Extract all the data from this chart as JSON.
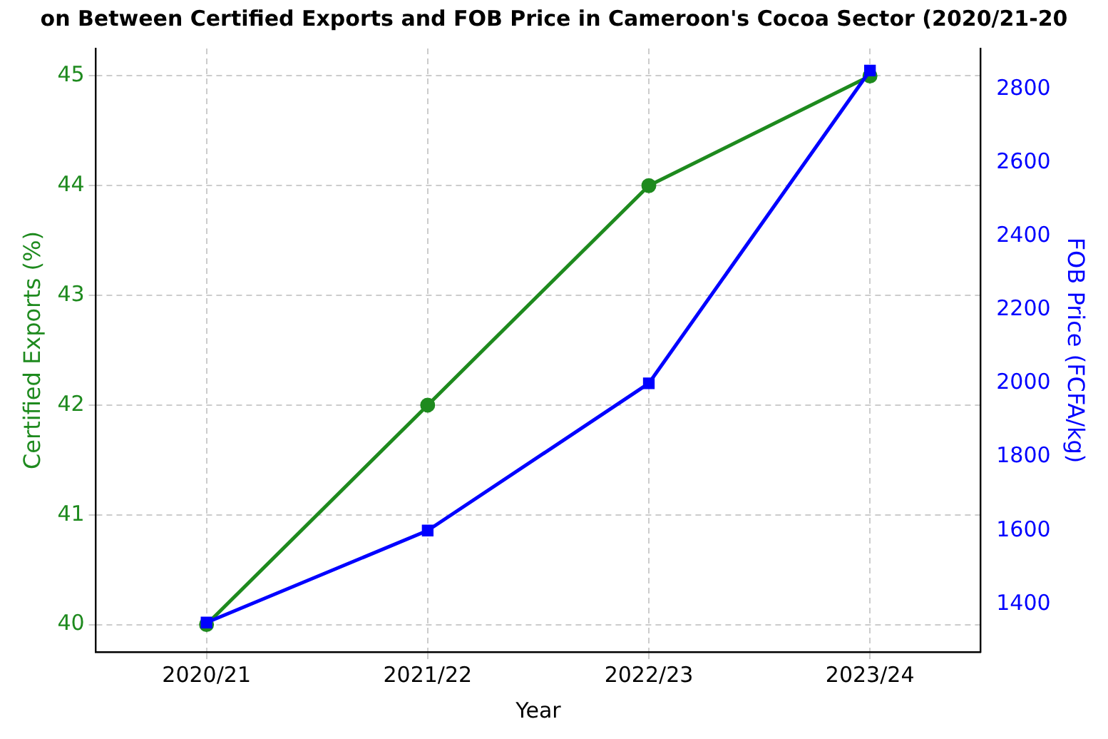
{
  "chart_data": {
    "type": "line",
    "title": "on Between Certified Exports and FOB Price in Cameroon's Cocoa Sector (2020/21-20",
    "xlabel": "Year",
    "ylabel": "Certified Exports (%)",
    "y2label": "FOB Price (FCFA/kg)",
    "categories": [
      "2020/21",
      "2021/22",
      "2022/23",
      "2023/24"
    ],
    "series": [
      {
        "color": "#1e8a1e",
        "values": [
          40,
          42,
          44,
          45
        ],
        "marker": "circle"
      },
      {
        "color": "#0000ff",
        "values": [
          1350,
          1600,
          2000,
          2850
        ],
        "marker": "square",
        "axis": "y2"
      }
    ],
    "ylim": [
      39.75,
      45.25
    ],
    "yticks": [
      40,
      41,
      42,
      43,
      44,
      45
    ],
    "y2lim": [
      1270,
      2910
    ],
    "y2ticks": [
      1400,
      1600,
      1800,
      2000,
      2200,
      2400,
      2600,
      2800
    ],
    "grid": true,
    "line_style": "solid"
  }
}
